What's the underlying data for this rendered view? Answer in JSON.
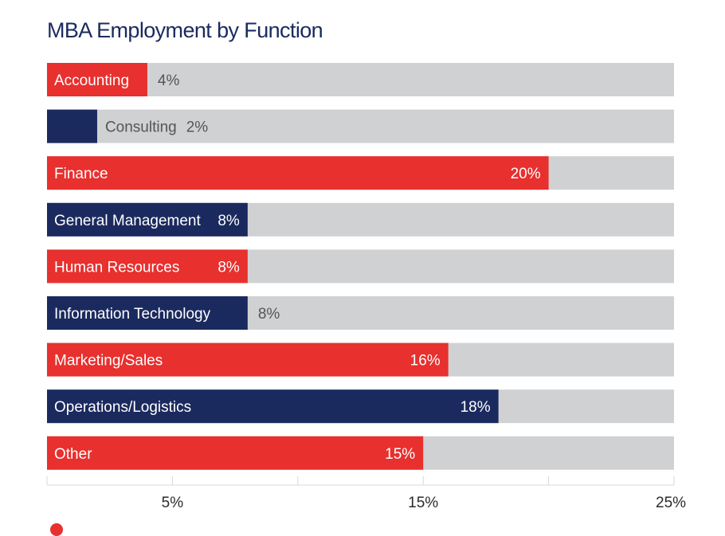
{
  "chart_data": {
    "type": "bar",
    "orientation": "horizontal",
    "title": "MBA Employment by Function",
    "categories": [
      "Accounting",
      "Consulting",
      "Finance",
      "General Management",
      "Human Resources",
      "Information Technology",
      "Marketing/Sales",
      "Operations/Logistics",
      "Other"
    ],
    "values": [
      4,
      2,
      20,
      8,
      8,
      8,
      16,
      18,
      15
    ],
    "value_labels": [
      "4%",
      "2%",
      "20%",
      "8%",
      "8%",
      "8%",
      "16%",
      "18%",
      "15%"
    ],
    "bar_colors": [
      "#e8302e",
      "#1b2a5e",
      "#e8302e",
      "#1b2a5e",
      "#e8302e",
      "#1b2a5e",
      "#e8302e",
      "#1b2a5e",
      "#e8302e"
    ],
    "track_color": "#d0d1d3",
    "xlim": [
      0,
      25
    ],
    "xticks": [
      5,
      15,
      25
    ],
    "xtick_labels": [
      "5%",
      "15%",
      "25%"
    ],
    "xlabel": "",
    "ylabel": ""
  }
}
